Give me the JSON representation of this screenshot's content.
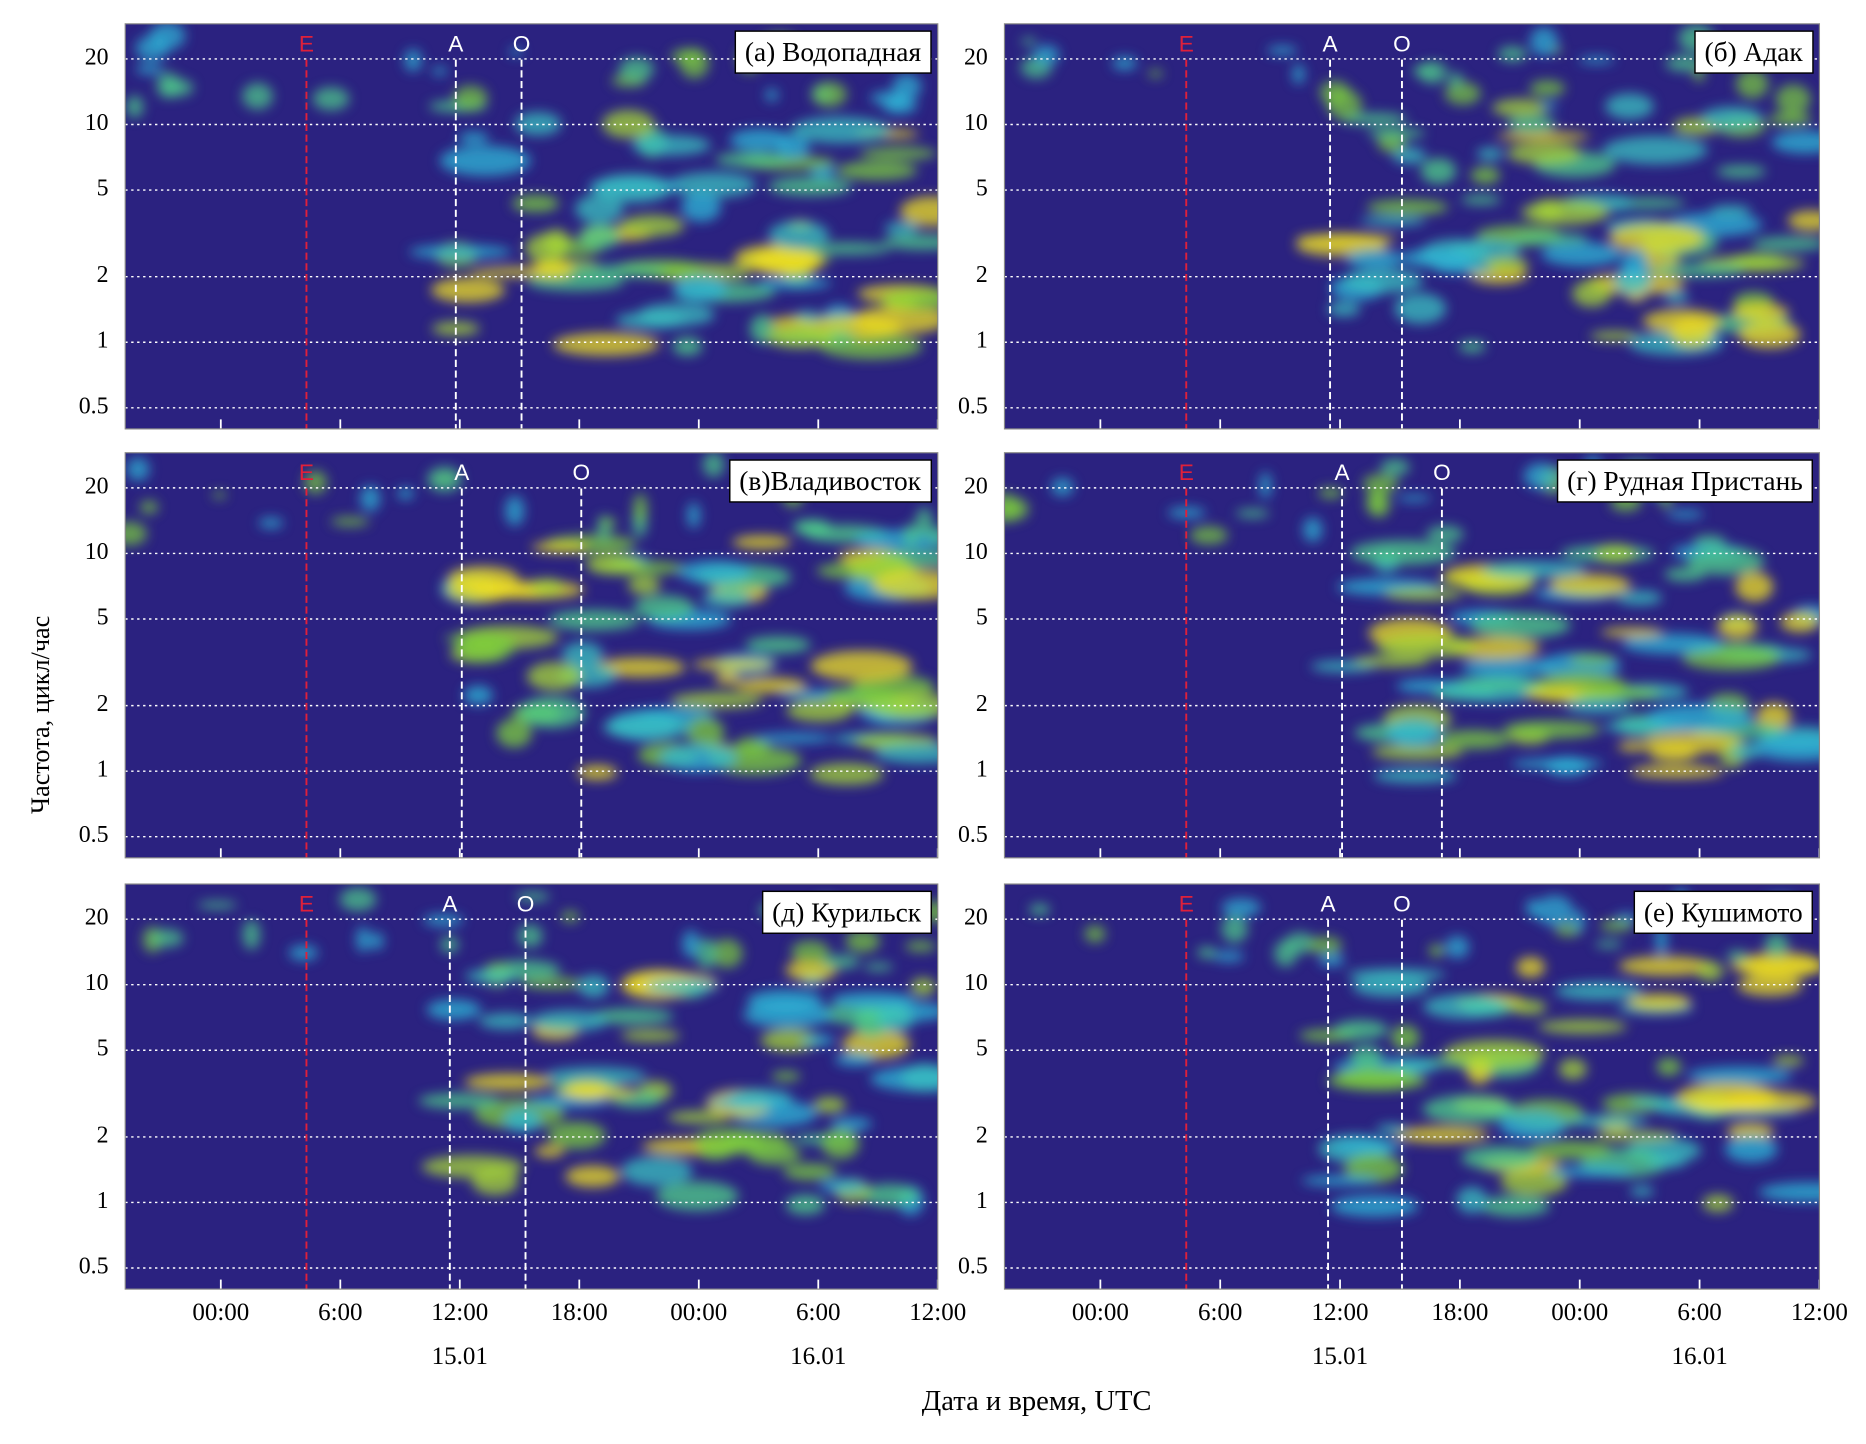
{
  "chart_data": [
    {
      "type": "spectrogram",
      "title": "(а) Водопадная",
      "ylog": true,
      "ylim": [
        0.4,
        29
      ],
      "yticks": [
        0.5,
        1,
        2,
        5,
        10,
        20
      ],
      "grid": true,
      "events": [
        {
          "label": "E",
          "x": 4.3,
          "color": "#e0203a"
        },
        {
          "label": "A",
          "x": 11.8,
          "color": "#ffffff"
        },
        {
          "label": "O",
          "x": 15.1,
          "color": "#ffffff"
        }
      ]
    },
    {
      "type": "spectrogram",
      "title": "(б) Адак",
      "ylog": true,
      "ylim": [
        0.4,
        29
      ],
      "yticks": [
        0.5,
        1,
        2,
        5,
        10,
        20
      ],
      "grid": true,
      "events": [
        {
          "label": "E",
          "x": 4.3,
          "color": "#e0203a"
        },
        {
          "label": "A",
          "x": 11.5,
          "color": "#ffffff"
        },
        {
          "label": "O",
          "x": 15.1,
          "color": "#ffffff"
        }
      ]
    },
    {
      "type": "spectrogram",
      "title": "(в)Владивосток",
      "ylog": true,
      "ylim": [
        0.4,
        29
      ],
      "yticks": [
        0.5,
        1,
        2,
        5,
        10,
        20
      ],
      "grid": true,
      "events": [
        {
          "label": "E",
          "x": 4.3,
          "color": "#e0203a"
        },
        {
          "label": "A",
          "x": 12.1,
          "color": "#ffffff"
        },
        {
          "label": "O",
          "x": 18.1,
          "color": "#ffffff"
        }
      ]
    },
    {
      "type": "spectrogram",
      "title": "(г) Рудная Пристань",
      "ylog": true,
      "ylim": [
        0.4,
        29
      ],
      "yticks": [
        0.5,
        1,
        2,
        5,
        10,
        20
      ],
      "grid": true,
      "events": [
        {
          "label": "E",
          "x": 4.3,
          "color": "#e0203a"
        },
        {
          "label": "A",
          "x": 12.1,
          "color": "#ffffff"
        },
        {
          "label": "O",
          "x": 17.1,
          "color": "#ffffff"
        }
      ]
    },
    {
      "type": "spectrogram",
      "title": "(д) Курильск",
      "ylog": true,
      "ylim": [
        0.4,
        29
      ],
      "yticks": [
        0.5,
        1,
        2,
        5,
        10,
        20
      ],
      "grid": true,
      "events": [
        {
          "label": "E",
          "x": 4.3,
          "color": "#e0203a"
        },
        {
          "label": "A",
          "x": 11.5,
          "color": "#ffffff"
        },
        {
          "label": "O",
          "x": 15.3,
          "color": "#ffffff"
        }
      ]
    },
    {
      "type": "spectrogram",
      "title": "(е) Кушимото",
      "ylog": true,
      "ylim": [
        0.4,
        29
      ],
      "yticks": [
        0.5,
        1,
        2,
        5,
        10,
        20
      ],
      "grid": true,
      "events": [
        {
          "label": "E",
          "x": 4.3,
          "color": "#e0203a"
        },
        {
          "label": "A",
          "x": 11.4,
          "color": "#ffffff"
        },
        {
          "label": "O",
          "x": 15.1,
          "color": "#ffffff"
        }
      ]
    }
  ],
  "figure": {
    "xlabel": "Дата и время, UTC",
    "ylabel": "Частота, цикл/час",
    "xlim": [
      -4.8,
      36
    ],
    "xticks": [
      {
        "value": 0,
        "label": "00:00"
      },
      {
        "value": 6,
        "label": "6:00"
      },
      {
        "value": 12,
        "label": "12:00"
      },
      {
        "value": 18,
        "label": "18:00"
      },
      {
        "value": 24,
        "label": "00:00"
      },
      {
        "value": 30,
        "label": "6:00"
      },
      {
        "value": 36,
        "label": "12:00"
      }
    ],
    "date_ticks": [
      {
        "value": 12,
        "label": "15.01"
      },
      {
        "value": 30,
        "label": "16.01"
      }
    ]
  }
}
